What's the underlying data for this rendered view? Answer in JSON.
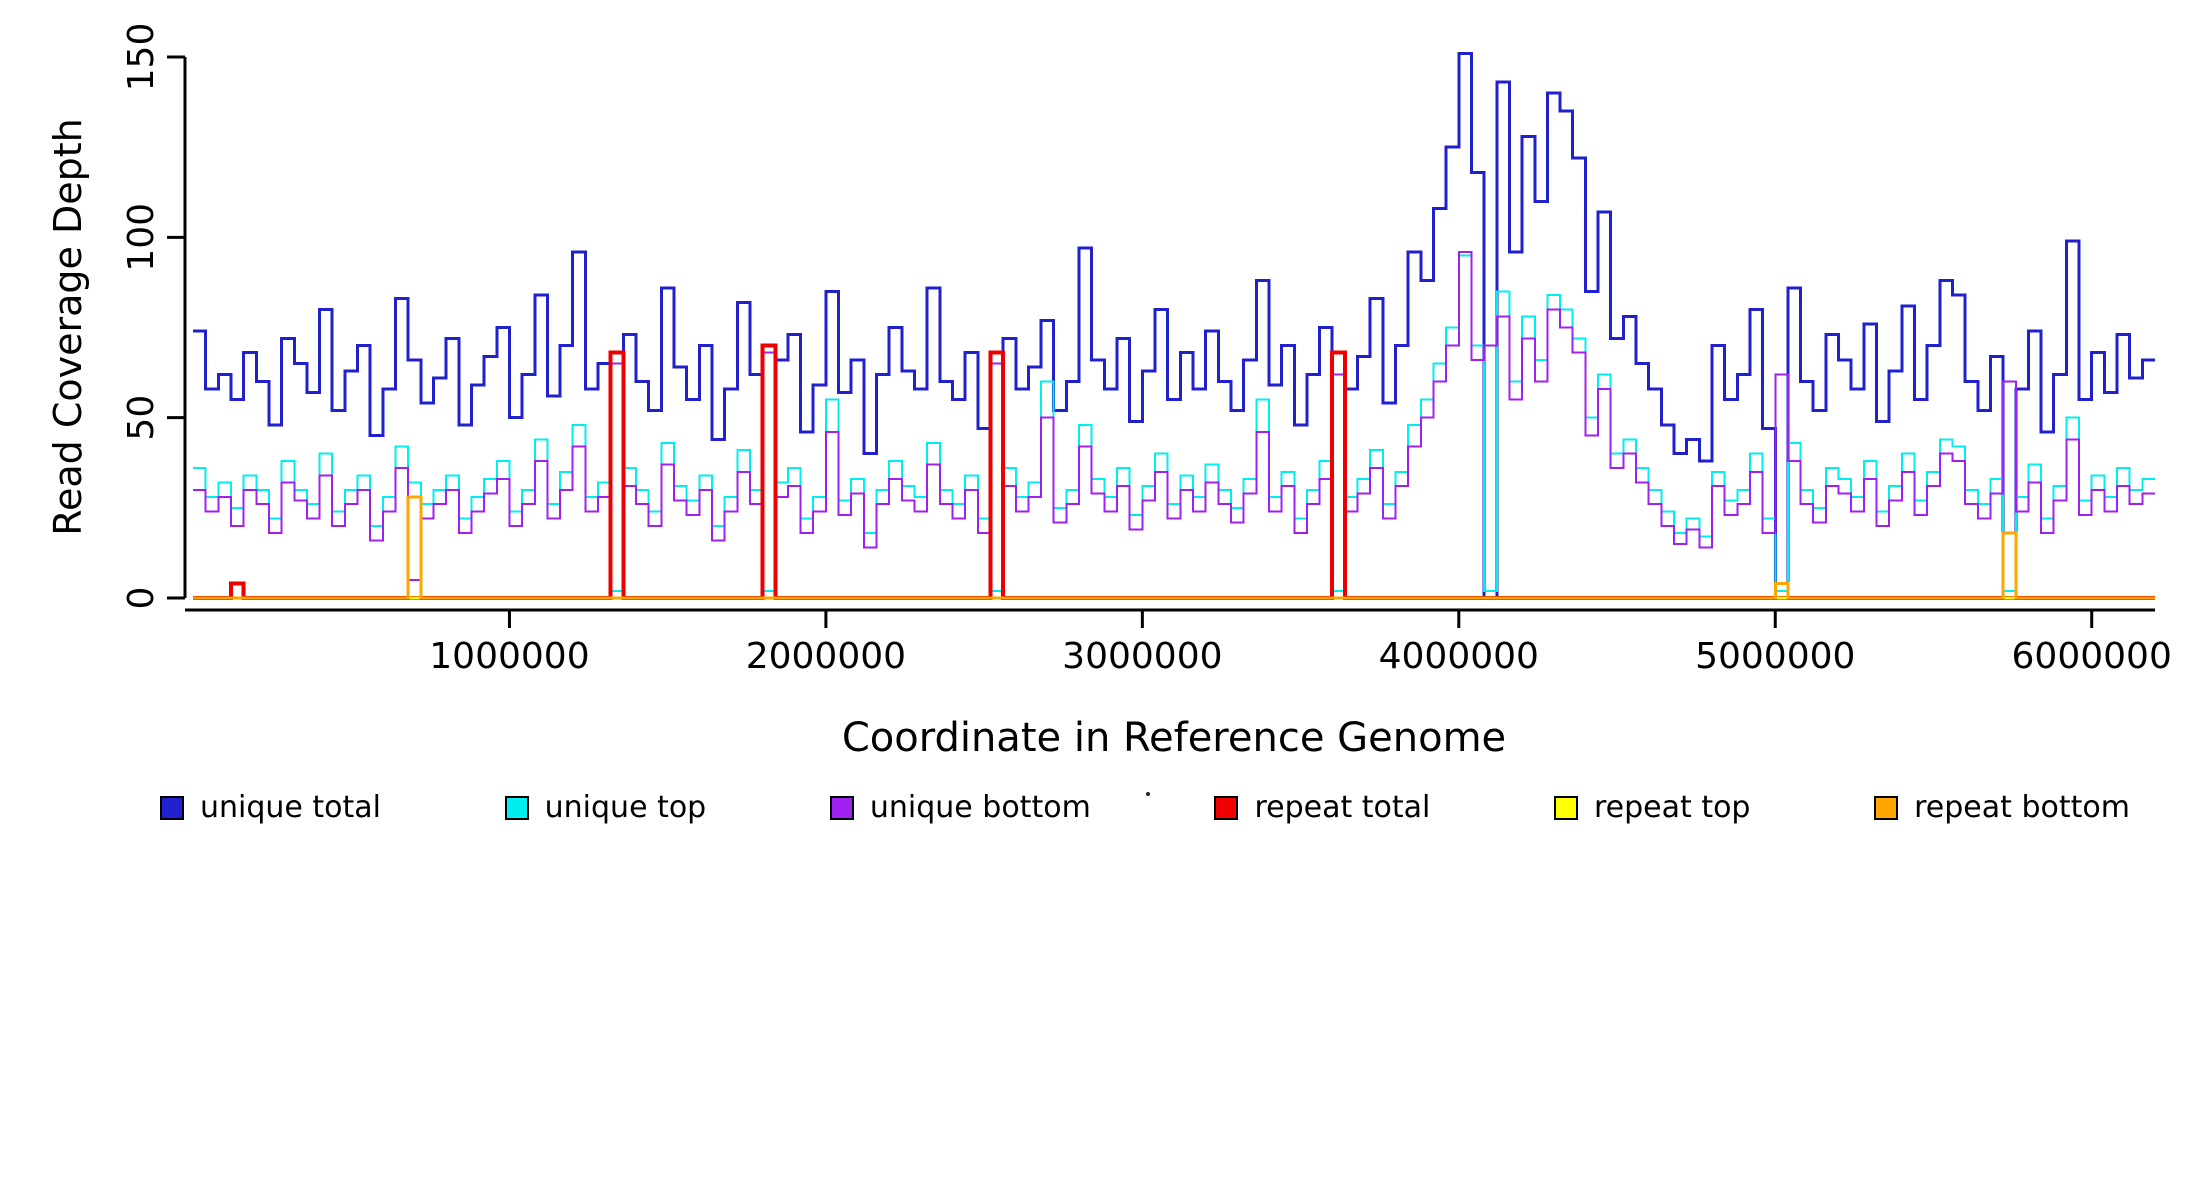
{
  "axes": {
    "x_label": "Coordinate in Reference Genome",
    "y_label": "Read Coverage Depth",
    "x_ticks": [
      1000000,
      2000000,
      3000000,
      4000000,
      5000000,
      6000000
    ],
    "x_tick_labels": [
      "1000000",
      "2000000",
      "3000000",
      "4000000",
      "5000000",
      "6000000"
    ],
    "y_ticks": [
      0,
      50,
      100,
      150
    ],
    "y_tick_labels": [
      "0",
      "50",
      "100",
      "150"
    ]
  },
  "legend": {
    "items": [
      {
        "label": "unique total",
        "color": "#2020CC"
      },
      {
        "label": "unique top",
        "color": "#00EEEE"
      },
      {
        "label": "unique bottom",
        "color": "#A020F0"
      },
      {
        "label": "repeat total",
        "color": "#EE0000"
      },
      {
        "label": "repeat top",
        "color": "#FFFF00"
      },
      {
        "label": "repeat bottom",
        "color": "#FFA500"
      }
    ]
  },
  "chart_data": {
    "type": "line",
    "subtype": "step",
    "title": "",
    "xlabel": "Coordinate in Reference Genome",
    "ylabel": "Read Coverage Depth",
    "x_range": [
      0,
      6200000
    ],
    "y_range": [
      0,
      155
    ],
    "n_bins": 155,
    "x_bin_width": 40000,
    "grid": false,
    "legend_position": "bottom",
    "series": [
      {
        "name": "unique total",
        "color": "#2020CC",
        "line_width": 3,
        "values": [
          74,
          58,
          62,
          55,
          68,
          60,
          48,
          72,
          65,
          57,
          80,
          52,
          63,
          70,
          45,
          58,
          83,
          66,
          54,
          61,
          72,
          48,
          59,
          67,
          75,
          50,
          62,
          84,
          56,
          70,
          96,
          58,
          65,
          0,
          73,
          60,
          52,
          86,
          64,
          55,
          70,
          44,
          58,
          82,
          62,
          0,
          66,
          73,
          46,
          59,
          85,
          57,
          66,
          40,
          62,
          75,
          63,
          58,
          86,
          60,
          55,
          68,
          47,
          0,
          72,
          58,
          64,
          77,
          52,
          60,
          97,
          66,
          58,
          72,
          49,
          63,
          80,
          55,
          68,
          58,
          74,
          60,
          52,
          66,
          88,
          59,
          70,
          48,
          62,
          75,
          0,
          58,
          67,
          83,
          54,
          70,
          96,
          88,
          108,
          125,
          151,
          118,
          0,
          143,
          96,
          128,
          110,
          140,
          135,
          122,
          85,
          107,
          72,
          78,
          65,
          58,
          48,
          40,
          44,
          38,
          70,
          55,
          62,
          80,
          47,
          0,
          86,
          60,
          52,
          73,
          66,
          58,
          76,
          49,
          63,
          81,
          55,
          70,
          88,
          84,
          60,
          52,
          67,
          0,
          58,
          74,
          46,
          62,
          99,
          55,
          68,
          57,
          73,
          61,
          66
        ]
      },
      {
        "name": "unique top",
        "color": "#00EEEE",
        "line_width": 2,
        "values": [
          36,
          28,
          32,
          25,
          34,
          30,
          22,
          38,
          30,
          26,
          40,
          24,
          30,
          34,
          20,
          28,
          42,
          32,
          26,
          30,
          34,
          22,
          28,
          33,
          38,
          24,
          30,
          44,
          26,
          35,
          48,
          28,
          32,
          2,
          36,
          30,
          24,
          43,
          31,
          27,
          34,
          20,
          28,
          41,
          30,
          2,
          32,
          36,
          22,
          28,
          55,
          27,
          33,
          18,
          30,
          38,
          31,
          28,
          43,
          30,
          26,
          34,
          22,
          2,
          36,
          28,
          32,
          60,
          25,
          30,
          48,
          33,
          28,
          36,
          23,
          31,
          40,
          26,
          34,
          28,
          37,
          30,
          25,
          33,
          55,
          28,
          35,
          22,
          30,
          38,
          2,
          28,
          33,
          41,
          26,
          35,
          48,
          55,
          65,
          75,
          95,
          70,
          2,
          85,
          60,
          78,
          66,
          84,
          80,
          72,
          50,
          62,
          40,
          44,
          36,
          30,
          24,
          18,
          22,
          17,
          35,
          27,
          30,
          40,
          22,
          2,
          43,
          30,
          25,
          36,
          33,
          28,
          38,
          24,
          31,
          40,
          27,
          35,
          44,
          42,
          30,
          26,
          33,
          2,
          28,
          37,
          22,
          31,
          50,
          27,
          34,
          28,
          36,
          30,
          33
        ]
      },
      {
        "name": "unique bottom",
        "color": "#A020F0",
        "line_width": 2,
        "values": [
          30,
          24,
          28,
          20,
          30,
          26,
          18,
          32,
          27,
          22,
          34,
          20,
          26,
          30,
          16,
          24,
          36,
          5,
          22,
          26,
          30,
          18,
          24,
          29,
          33,
          20,
          26,
          38,
          22,
          30,
          42,
          24,
          28,
          65,
          31,
          26,
          20,
          37,
          27,
          23,
          30,
          16,
          24,
          35,
          26,
          68,
          28,
          31,
          18,
          24,
          46,
          23,
          29,
          14,
          26,
          33,
          27,
          24,
          37,
          26,
          22,
          30,
          18,
          65,
          31,
          24,
          28,
          50,
          21,
          26,
          42,
          29,
          24,
          31,
          19,
          27,
          35,
          22,
          30,
          24,
          32,
          26,
          21,
          29,
          46,
          24,
          31,
          18,
          26,
          33,
          62,
          24,
          29,
          36,
          22,
          31,
          42,
          50,
          60,
          70,
          96,
          66,
          70,
          78,
          55,
          72,
          60,
          80,
          75,
          68,
          45,
          58,
          36,
          40,
          32,
          26,
          20,
          15,
          19,
          14,
          31,
          23,
          26,
          35,
          18,
          62,
          38,
          26,
          21,
          31,
          29,
          24,
          33,
          20,
          27,
          35,
          23,
          31,
          40,
          38,
          26,
          22,
          29,
          60,
          24,
          32,
          18,
          27,
          44,
          23,
          30,
          24,
          31,
          26,
          29
        ]
      },
      {
        "name": "repeat total",
        "color": "#EE0000",
        "line_width": 4,
        "default": 0,
        "values_sparse": {
          "3": 4,
          "33": 68,
          "45": 70,
          "63": 68,
          "90": 68
        }
      },
      {
        "name": "repeat top",
        "color": "#FFFF00",
        "line_width": 3,
        "default": 0,
        "values_sparse": {}
      },
      {
        "name": "repeat bottom",
        "color": "#FFA500",
        "line_width": 3,
        "default": 0,
        "values_sparse": {
          "17": 28,
          "125": 4,
          "143": 18
        }
      }
    ]
  }
}
